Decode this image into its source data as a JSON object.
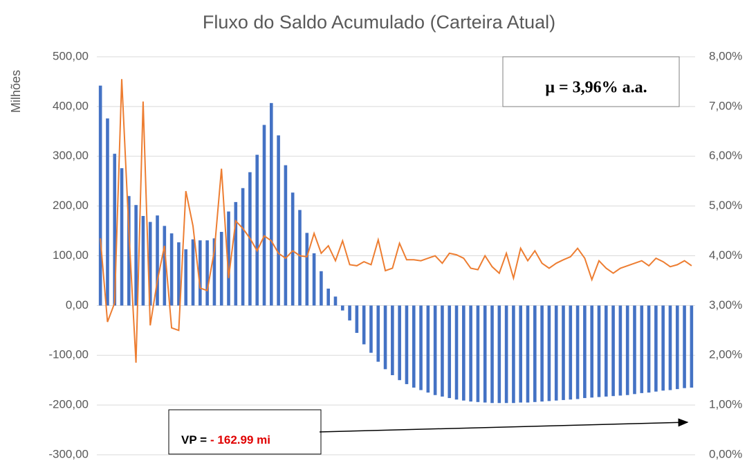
{
  "chart_data": {
    "type": "bar+line",
    "title": "Fluxo do Saldo Acumulado (Carteira Atual)",
    "y_label": "Milhões",
    "categories": [
      null,
      null,
      null,
      null,
      null,
      null,
      null,
      null,
      null,
      null,
      null,
      null,
      null,
      null,
      null,
      null,
      null,
      null,
      null,
      null,
      null,
      null,
      null,
      null,
      null,
      null,
      null,
      null,
      null,
      null,
      null,
      null,
      null,
      null,
      null,
      null,
      null,
      null,
      null,
      null,
      null,
      null,
      null,
      null,
      null,
      null,
      null,
      null,
      null,
      null,
      null,
      null,
      null,
      null,
      null,
      null,
      null,
      null,
      null,
      null,
      null,
      null,
      null,
      null,
      null,
      null,
      null,
      null,
      null,
      null,
      null,
      null,
      null,
      null,
      null,
      null,
      null,
      null,
      null,
      null,
      null,
      null,
      null,
      null
    ],
    "series": [
      {
        "type": "bar",
        "color": "#4472c4",
        "values": [
          442,
          376,
          305,
          276,
          220,
          202,
          180,
          168,
          181,
          160,
          145,
          127,
          113,
          133,
          131,
          131,
          135,
          148,
          189,
          208,
          236,
          268,
          303,
          363,
          407,
          342,
          282,
          227,
          192,
          146,
          105,
          69,
          34,
          18,
          -10,
          -30,
          -55,
          -78,
          -95,
          -113,
          -128,
          -140,
          -150,
          -158,
          -165,
          -170,
          -175,
          -180,
          -183,
          -186,
          -189,
          -191,
          -193,
          -194,
          -195,
          -196,
          -196,
          -196,
          -196,
          -195,
          -195,
          -194,
          -193,
          -192,
          -191,
          -190,
          -189,
          -188,
          -186,
          -185,
          -184,
          -183,
          -182,
          -181,
          -180,
          -178,
          -176,
          -175,
          -173,
          -171,
          -170,
          -168,
          -166,
          -165
        ]
      },
      {
        "type": "line",
        "axis": "y2",
        "color": "#ed7d31",
        "values": [
          4.35,
          2.67,
          3.05,
          7.55,
          4.5,
          1.85,
          7.1,
          2.6,
          3.5,
          4.2,
          2.55,
          2.5,
          5.3,
          4.6,
          3.35,
          3.3,
          4.1,
          5.75,
          3.55,
          4.7,
          4.55,
          4.35,
          4.1,
          4.4,
          4.3,
          4.05,
          3.95,
          4.1,
          4.0,
          3.98,
          4.45,
          4.05,
          4.2,
          3.9,
          4.3,
          3.82,
          3.8,
          3.88,
          3.82,
          4.32,
          3.7,
          3.75,
          4.25,
          3.92,
          3.92,
          3.9,
          3.95,
          4.0,
          3.85,
          4.05,
          4.02,
          3.95,
          3.75,
          3.72,
          4.0,
          3.78,
          3.65,
          4.05,
          3.55,
          4.15,
          3.9,
          4.1,
          3.85,
          3.75,
          3.85,
          3.92,
          3.98,
          4.15,
          3.95,
          3.52,
          3.9,
          3.75,
          3.65,
          3.75,
          3.8,
          3.85,
          3.9,
          3.8,
          3.95,
          3.88,
          3.78,
          3.82,
          3.9,
          3.8
        ]
      }
    ],
    "ylim": [
      -300,
      500
    ],
    "yticks": [
      {
        "value": -300,
        "label": "-300,00"
      },
      {
        "value": -200,
        "label": "-200,00"
      },
      {
        "value": -100,
        "label": "-100,00"
      },
      {
        "value": 0,
        "label": "0,00"
      },
      {
        "value": 100,
        "label": "100,00"
      },
      {
        "value": 200,
        "label": "200,00"
      },
      {
        "value": 300,
        "label": "300,00"
      },
      {
        "value": 400,
        "label": "400,00"
      },
      {
        "value": 500,
        "label": "500,00"
      }
    ],
    "y2lim": [
      0,
      8
    ],
    "y2ticks": [
      {
        "value": 0,
        "label": "0,00%"
      },
      {
        "value": 1,
        "label": "1,00%"
      },
      {
        "value": 2,
        "label": "2,00%"
      },
      {
        "value": 3,
        "label": "3,00%"
      },
      {
        "value": 4,
        "label": "4,00%"
      },
      {
        "value": 5,
        "label": "5,00%"
      },
      {
        "value": 6,
        "label": "6,00%"
      },
      {
        "value": 7,
        "label": "7,00%"
      },
      {
        "value": 8,
        "label": "8,00%"
      }
    ],
    "grid": true,
    "annotations": {
      "mu": "μ = 3,96% a.a.",
      "vp_label": "VP =",
      "vp_value": "- 162.99 mi"
    }
  }
}
